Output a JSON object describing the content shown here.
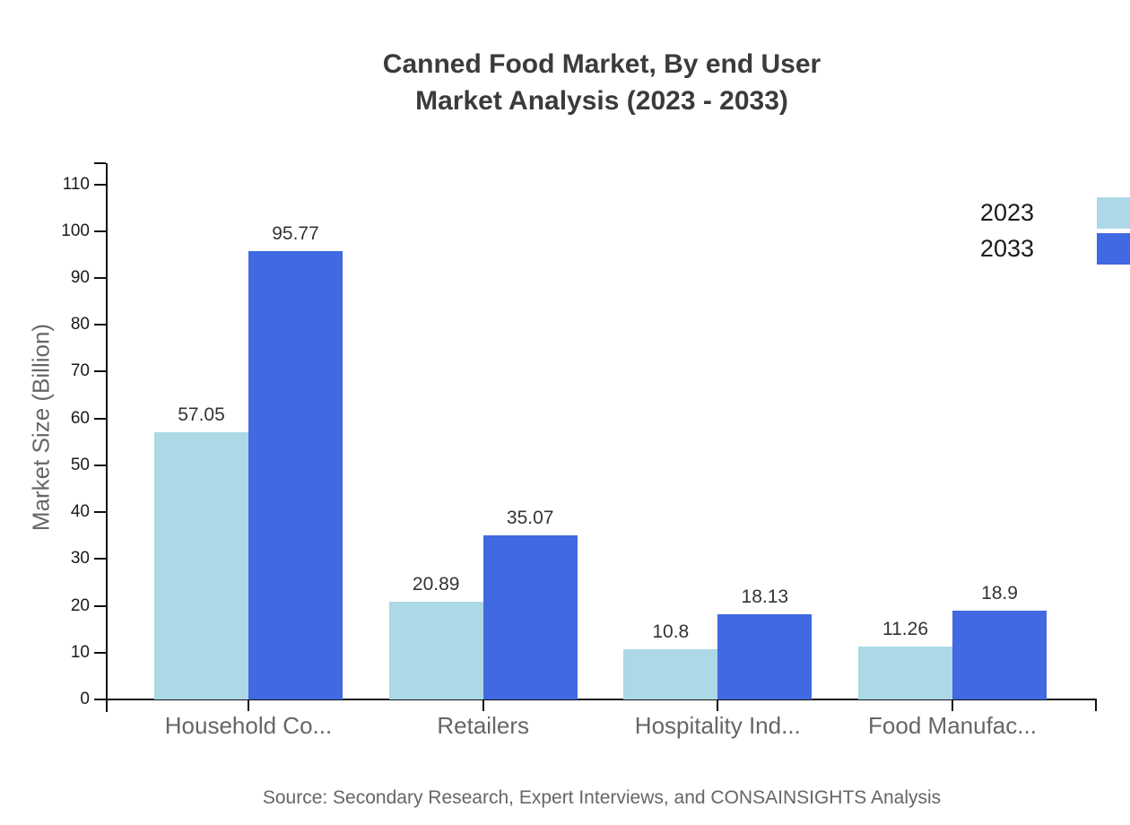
{
  "title": {
    "line1": "Canned Food Market, By end User",
    "line2": "Market Analysis (2023 - 2033)"
  },
  "y_axis_title": "Market Size (Billion)",
  "source_note": "Source: Secondary Research, Expert Interviews, and CONSAINSIGHTS Analysis",
  "colors": {
    "series_2023": "#ADD8E6",
    "series_2033": "#4169E1",
    "axis": "#111111",
    "title_text": "#3b3b3b",
    "muted_text": "#666666"
  },
  "legend": {
    "items": [
      {
        "label": "2023",
        "color": "#ADD8E6"
      },
      {
        "label": "2033",
        "color": "#4169E1"
      }
    ]
  },
  "chart_data": {
    "type": "bar",
    "title": "Canned Food Market, By end User Market Analysis (2023 - 2033)",
    "categories": [
      "Household Co...",
      "Retailers",
      "Hospitality Ind...",
      "Food Manufac..."
    ],
    "series": [
      {
        "name": "2023",
        "color": "#ADD8E6",
        "values": [
          57.05,
          20.89,
          10.8,
          11.26
        ]
      },
      {
        "name": "2033",
        "color": "#4169E1",
        "values": [
          95.77,
          35.07,
          18.13,
          18.9
        ]
      }
    ],
    "value_labels": [
      "57.05",
      "95.77",
      "20.89",
      "35.07",
      "10.8",
      "18.13",
      "11.26",
      "18.9"
    ],
    "xlabel": "",
    "ylabel": "Market Size (Billion)",
    "ylim": [
      0,
      110
    ],
    "y_tick_step": 10,
    "y_tick_labels": [
      "0",
      "10",
      "20",
      "30",
      "40",
      "50",
      "60",
      "70",
      "80",
      "90",
      "100",
      "110"
    ],
    "grid": false,
    "legend_position": "top-right"
  }
}
